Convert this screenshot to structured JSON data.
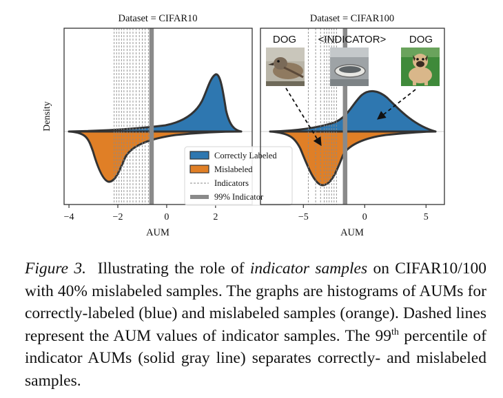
{
  "figure": {
    "ylabel": "Density",
    "colors": {
      "correct": "#2e77b0",
      "mislabeled": "#e07f26",
      "indicator_line": "#8a8a8a",
      "percentile_line": "#8a8a8a",
      "outline": "#333333"
    },
    "panels": [
      {
        "title": "Dataset = CIFAR10",
        "xlabel": "AUM",
        "xticks": [
          "−4",
          "−2",
          "0",
          "2"
        ],
        "tick_values": [
          -4,
          -2,
          0,
          2
        ],
        "xlim": [
          -4.2,
          3.5
        ],
        "indicator_aums": [
          -2.15,
          -2.05,
          -1.95,
          -1.85,
          -1.75,
          -1.62,
          -1.5,
          -1.38,
          -1.25,
          -1.12,
          -1.0,
          -0.88,
          -0.75
        ],
        "percentile_99_aum": -0.62
      },
      {
        "title": "Dataset = CIFAR100",
        "xlabel": "AUM",
        "xticks": [
          "−5",
          "0",
          "5"
        ],
        "tick_values": [
          -5,
          0,
          5
        ],
        "xlim": [
          -8.5,
          6.5
        ],
        "indicator_aums": [
          -4.6,
          -4.0,
          -3.6,
          -3.3,
          -3.1,
          -2.9,
          -2.7,
          -2.5,
          -2.3
        ],
        "percentile_99_aum": -1.6,
        "image_labels": [
          "DOG",
          "<INDICATOR>",
          "DOG"
        ]
      }
    ],
    "legend": [
      "Correctly Labeled",
      "Mislabeled",
      "Indicators",
      "99% Indicator"
    ]
  },
  "chart_data": [
    {
      "type": "area",
      "title": "Dataset = CIFAR10",
      "xlabel": "AUM",
      "ylabel": "Density",
      "xlim": [
        -4.2,
        3.5
      ],
      "series": [
        {
          "name": "Correctly Labeled",
          "x": [
            -3.8,
            -3.0,
            -2.0,
            -1.0,
            0.0,
            0.5,
            1.0,
            1.3,
            1.6,
            1.9,
            2.2,
            2.5
          ],
          "density": [
            0.0,
            0.005,
            0.02,
            0.05,
            0.11,
            0.17,
            0.28,
            0.42,
            0.62,
            0.45,
            0.1,
            0.0
          ]
        },
        {
          "name": "Mislabeled",
          "x": [
            -3.8,
            -3.4,
            -3.0,
            -2.6,
            -2.3,
            -2.0,
            -1.6,
            -1.0,
            0.0,
            1.0,
            2.0,
            2.5
          ],
          "density": [
            0.0,
            0.1,
            0.35,
            0.62,
            0.7,
            0.55,
            0.25,
            0.12,
            0.04,
            0.015,
            0.005,
            0.0
          ]
        }
      ],
      "indicator_aums": [
        -2.15,
        -2.05,
        -1.95,
        -1.85,
        -1.75,
        -1.62,
        -1.5,
        -1.38,
        -1.25,
        -1.12,
        -1.0,
        -0.88,
        -0.75
      ],
      "percentile_99_aum": -0.62
    },
    {
      "type": "area",
      "title": "Dataset = CIFAR100",
      "xlabel": "AUM",
      "ylabel": "Density",
      "xlim": [
        -8.5,
        6.5
      ],
      "series": [
        {
          "name": "Correctly Labeled",
          "x": [
            -8.0,
            -6.0,
            -4.0,
            -2.5,
            -1.0,
            0.0,
            1.0,
            2.0,
            3.0,
            4.0,
            5.0,
            5.5
          ],
          "density": [
            0.0,
            0.01,
            0.06,
            0.25,
            0.5,
            0.6,
            0.55,
            0.38,
            0.2,
            0.08,
            0.02,
            0.0
          ]
        },
        {
          "name": "Mislabeled",
          "x": [
            -8.0,
            -7.0,
            -6.0,
            -5.0,
            -4.0,
            -3.5,
            -3.0,
            -2.0,
            -1.0,
            0.0,
            2.0,
            4.0,
            5.5
          ],
          "density": [
            0.0,
            0.06,
            0.22,
            0.5,
            0.74,
            0.78,
            0.68,
            0.35,
            0.12,
            0.04,
            0.01,
            0.002,
            0.0
          ]
        }
      ],
      "indicator_aums": [
        -4.6,
        -4.0,
        -3.6,
        -3.3,
        -3.1,
        -2.9,
        -2.7,
        -2.5,
        -2.3
      ],
      "percentile_99_aum": -1.6
    }
  ],
  "caption": {
    "lead": "Figure 3.",
    "text_1": "Illustrating the role of",
    "emph": "indicator samples",
    "text_2": "on CIFAR10/100 with 40% mislabeled samples. The graphs are histograms of AUMs for correctly-labeled (blue) and mislabeled samples (orange). Dashed lines represent the AUM values of indicator samples. The 99",
    "sup": "th",
    "text_3": "percentile of indicator AUMs (solid gray line) separates correctly- and mislabeled samples."
  }
}
